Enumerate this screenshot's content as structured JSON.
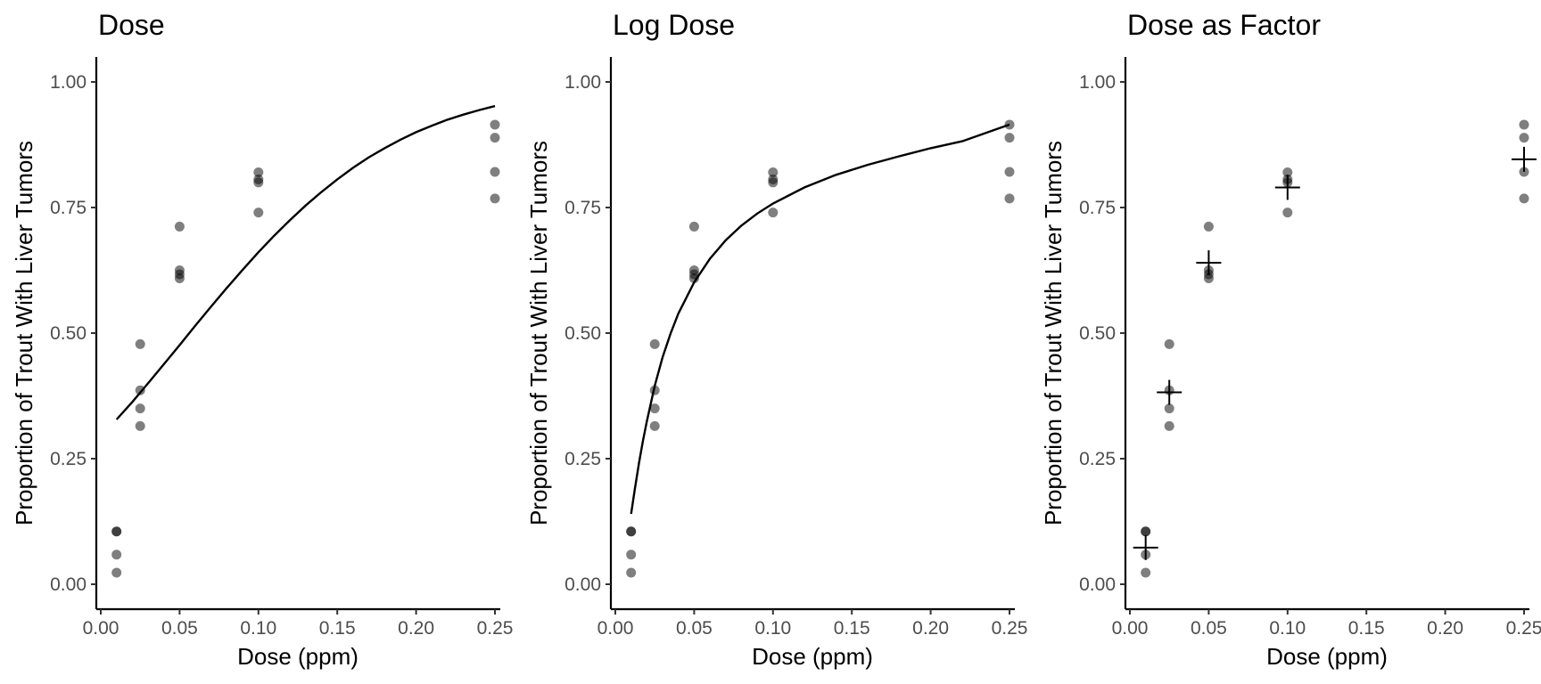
{
  "chart_data": [
    {
      "type": "scatter",
      "title": "Dose",
      "xlabel": "Dose (ppm)",
      "ylabel": "Proportion of Trout With Liver Tumors",
      "xlim": [
        0,
        0.25
      ],
      "ylim": [
        0,
        1
      ],
      "xticks": [
        0.0,
        0.05,
        0.1,
        0.15,
        0.2,
        0.25
      ],
      "xtick_labels": [
        "0.00",
        "0.05",
        "0.10",
        "0.15",
        "0.20",
        "0.25"
      ],
      "yticks": [
        0.0,
        0.25,
        0.5,
        0.75,
        1.0
      ],
      "ytick_labels": [
        "0.00",
        "0.25",
        "0.50",
        "0.75",
        "1.00"
      ],
      "grid": false,
      "points": [
        [
          0.01,
          0.105
        ],
        [
          0.01,
          0.105
        ],
        [
          0.01,
          0.059
        ],
        [
          0.01,
          0.023
        ],
        [
          0.025,
          0.478
        ],
        [
          0.025,
          0.386
        ],
        [
          0.025,
          0.35
        ],
        [
          0.025,
          0.315
        ],
        [
          0.05,
          0.712
        ],
        [
          0.05,
          0.625
        ],
        [
          0.05,
          0.617
        ],
        [
          0.05,
          0.609
        ],
        [
          0.1,
          0.82
        ],
        [
          0.1,
          0.806
        ],
        [
          0.1,
          0.8
        ],
        [
          0.1,
          0.74
        ],
        [
          0.25,
          0.915
        ],
        [
          0.25,
          0.889
        ],
        [
          0.25,
          0.821
        ],
        [
          0.25,
          0.768
        ]
      ],
      "fit_line": {
        "x": [
          0.01,
          0.02,
          0.03,
          0.04,
          0.05,
          0.06,
          0.07,
          0.08,
          0.09,
          0.1,
          0.11,
          0.12,
          0.13,
          0.14,
          0.15,
          0.16,
          0.17,
          0.18,
          0.19,
          0.2,
          0.21,
          0.22,
          0.23,
          0.24,
          0.25
        ],
        "y": [
          0.328,
          0.363,
          0.4,
          0.438,
          0.476,
          0.515,
          0.553,
          0.59,
          0.626,
          0.661,
          0.694,
          0.725,
          0.754,
          0.781,
          0.806,
          0.829,
          0.85,
          0.868,
          0.885,
          0.9,
          0.913,
          0.925,
          0.935,
          0.944,
          0.952
        ]
      }
    },
    {
      "type": "scatter",
      "title": "Log Dose",
      "xlabel": "Dose (ppm)",
      "ylabel": "Proportion of Trout With Liver Tumors",
      "xlim": [
        0,
        0.25
      ],
      "ylim": [
        0,
        1
      ],
      "xticks": [
        0.0,
        0.05,
        0.1,
        0.15,
        0.2,
        0.25
      ],
      "xtick_labels": [
        "0.00",
        "0.05",
        "0.10",
        "0.15",
        "0.20",
        "0.25"
      ],
      "yticks": [
        0.0,
        0.25,
        0.5,
        0.75,
        1.0
      ],
      "ytick_labels": [
        "0.00",
        "0.25",
        "0.50",
        "0.75",
        "1.00"
      ],
      "grid": false,
      "points": [
        [
          0.01,
          0.105
        ],
        [
          0.01,
          0.105
        ],
        [
          0.01,
          0.059
        ],
        [
          0.01,
          0.023
        ],
        [
          0.025,
          0.478
        ],
        [
          0.025,
          0.386
        ],
        [
          0.025,
          0.35
        ],
        [
          0.025,
          0.315
        ],
        [
          0.05,
          0.712
        ],
        [
          0.05,
          0.625
        ],
        [
          0.05,
          0.617
        ],
        [
          0.05,
          0.609
        ],
        [
          0.1,
          0.82
        ],
        [
          0.1,
          0.806
        ],
        [
          0.1,
          0.8
        ],
        [
          0.1,
          0.74
        ],
        [
          0.25,
          0.915
        ],
        [
          0.25,
          0.889
        ],
        [
          0.25,
          0.821
        ],
        [
          0.25,
          0.768
        ]
      ],
      "fit_line": {
        "x": [
          0.01,
          0.0125,
          0.015,
          0.0175,
          0.02,
          0.025,
          0.03,
          0.035,
          0.04,
          0.05,
          0.06,
          0.07,
          0.08,
          0.09,
          0.1,
          0.12,
          0.14,
          0.16,
          0.18,
          0.2,
          0.22,
          0.25
        ],
        "y": [
          0.14,
          0.192,
          0.241,
          0.285,
          0.325,
          0.395,
          0.452,
          0.499,
          0.539,
          0.601,
          0.648,
          0.685,
          0.714,
          0.738,
          0.758,
          0.79,
          0.815,
          0.835,
          0.852,
          0.868,
          0.882,
          0.915
        ]
      }
    },
    {
      "type": "scatter",
      "title": "Dose as Factor",
      "xlabel": "Dose (ppm)",
      "ylabel": "Proportion of Trout With Liver Tumors",
      "xlim": [
        0,
        0.25
      ],
      "ylim": [
        0,
        1
      ],
      "xticks": [
        0.0,
        0.05,
        0.1,
        0.15,
        0.2,
        0.25
      ],
      "xtick_labels": [
        "0.00",
        "0.05",
        "0.10",
        "0.15",
        "0.20",
        "0.25"
      ],
      "yticks": [
        0.0,
        0.25,
        0.5,
        0.75,
        1.0
      ],
      "ytick_labels": [
        "0.00",
        "0.25",
        "0.50",
        "0.75",
        "1.00"
      ],
      "grid": false,
      "points": [
        [
          0.01,
          0.105
        ],
        [
          0.01,
          0.105
        ],
        [
          0.01,
          0.059
        ],
        [
          0.01,
          0.023
        ],
        [
          0.025,
          0.478
        ],
        [
          0.025,
          0.386
        ],
        [
          0.025,
          0.35
        ],
        [
          0.025,
          0.315
        ],
        [
          0.05,
          0.712
        ],
        [
          0.05,
          0.625
        ],
        [
          0.05,
          0.617
        ],
        [
          0.05,
          0.609
        ],
        [
          0.1,
          0.82
        ],
        [
          0.1,
          0.806
        ],
        [
          0.1,
          0.8
        ],
        [
          0.1,
          0.74
        ],
        [
          0.25,
          0.915
        ],
        [
          0.25,
          0.889
        ],
        [
          0.25,
          0.821
        ],
        [
          0.25,
          0.768
        ]
      ],
      "group_means": [
        [
          0.01,
          0.073
        ],
        [
          0.025,
          0.382
        ],
        [
          0.05,
          0.64
        ],
        [
          0.1,
          0.79
        ],
        [
          0.25,
          0.846
        ]
      ]
    }
  ]
}
